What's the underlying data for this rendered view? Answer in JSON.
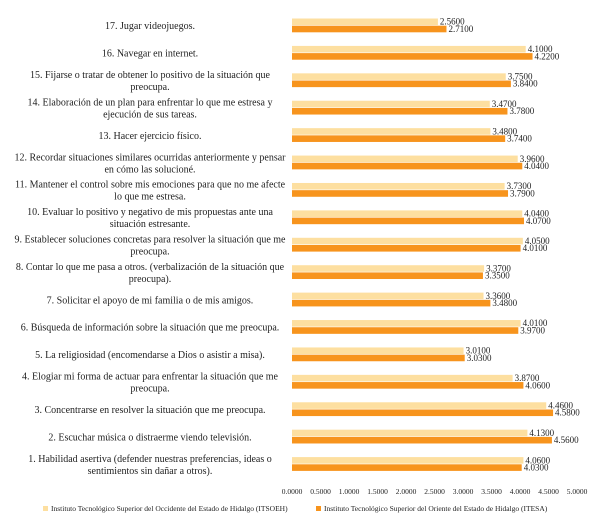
{
  "chart_data": {
    "type": "bar",
    "orientation": "horizontal",
    "categories": [
      "1. Habilidad asertiva (defender nuestras preferencias, ideas o\nsentimientos sin dañar a otros).",
      "2. Escuchar música o distraerme viendo televisión.",
      "3. Concentrarse en resolver la situación que me preocupa.",
      "4. Elogiar mi forma de actuar para enfrentar la situación que me\npreocupa.",
      "5. La religiosidad (encomendarse a Dios o asistir a misa).",
      "6. Búsqueda de información sobre la situación que me preocupa.",
      "7. Solicitar el apoyo de mi familia o de mis amigos.",
      "8. Contar lo que me pasa a otros. (verbalización de la situación que\npreocupa).",
      "9. Establecer soluciones concretas para resolver la situación que me\npreocupa.",
      "10. Evaluar lo positivo y negativo de mis propuestas ante una\nsituación estresante.",
      "11. Mantener el control sobre mis emociones para que no me afecte\nlo que me estresa.",
      "12. Recordar situaciones similares ocurridas anteriormente y pensar\nen cómo las solucioné.",
      "13. Hacer ejercicio físico.",
      "14. Elaboración de un plan para enfrentar lo que me estresa y\nejecución de sus tareas.",
      "15. Fijarse o tratar de obtener lo positivo de la situación que\npreocupa.",
      "16. Navegar en internet.",
      "17. Jugar videojuegos."
    ],
    "series": [
      {
        "name": "Instituto Tecnológico Superior del Occidente del Estado de Hidalgo (ITSOEH)",
        "values": [
          4.06,
          4.13,
          4.46,
          3.87,
          3.01,
          4.01,
          3.36,
          3.37,
          4.05,
          4.04,
          3.73,
          3.96,
          3.48,
          3.47,
          3.75,
          4.1,
          2.56
        ],
        "labels": [
          "4.0600",
          "4.1300",
          "4.4600",
          "3.8700",
          "3.0100",
          "4.0100",
          "3.3600",
          "3.3700",
          "4.0500",
          "4.0400",
          "3.7300",
          "3.9600",
          "3.4800",
          "3.4700",
          "3.7500",
          "4.1000",
          "2.5600"
        ],
        "color": "#FDDFA0"
      },
      {
        "name": "Instituto Tecnológico Superior del Oriente del Estado de Hidalgo (ITESA)",
        "values": [
          4.03,
          4.56,
          4.58,
          4.06,
          3.03,
          3.97,
          3.48,
          3.35,
          4.01,
          4.07,
          3.79,
          4.04,
          3.74,
          3.78,
          3.84,
          4.22,
          2.71
        ],
        "labels": [
          "4.0300",
          "4.5600",
          "4.5800",
          "4.0600",
          "3.0300",
          "3.9700",
          "3.4800",
          "3.3500",
          "4.0100",
          "4.0700",
          "3.7900",
          "4.0400",
          "3.7400",
          "3.7800",
          "3.8400",
          "4.2200",
          "2.7100"
        ],
        "color": "#F7941D"
      }
    ],
    "xlim": [
      0,
      5
    ],
    "xticks": [
      0,
      0.5,
      1,
      1.5,
      2,
      2.5,
      3,
      3.5,
      4,
      4.5,
      5
    ],
    "xtick_labels": [
      "0.0000",
      "0.5000",
      "1.0000",
      "1.5000",
      "2.0000",
      "2.5000",
      "3.0000",
      "3.5000",
      "4.0000",
      "4.5000",
      "5.0000"
    ],
    "grid": false,
    "legend": "bottom",
    "title": "",
    "xlabel": "",
    "ylabel": ""
  }
}
